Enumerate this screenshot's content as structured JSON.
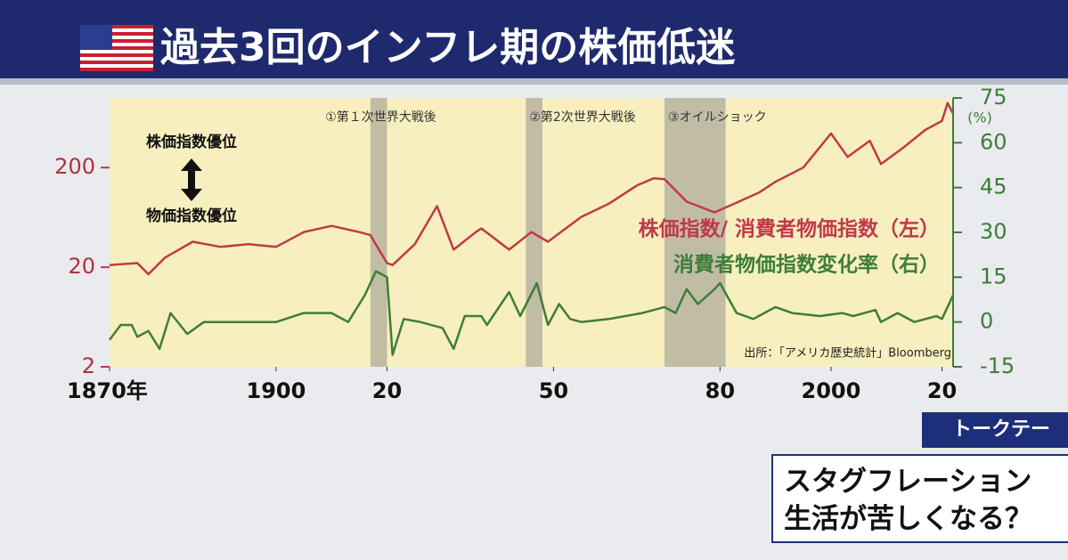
{
  "chart_data": {
    "type": "line",
    "title": "過去3回のインフレ期の株価低迷",
    "xlim": [
      1870,
      2022
    ],
    "xticks": [
      {
        "value": 1870,
        "label": "1870年"
      },
      1900,
      {
        "value": 1920,
        "label": "20"
      },
      {
        "value": 1950,
        "label": "50"
      },
      {
        "value": 1980,
        "label": "80"
      },
      2000,
      {
        "value": 2020,
        "label": "20"
      }
    ],
    "ylim": [
      2,
      1000
    ],
    "yscale": "log",
    "yticks": [
      2,
      20,
      200
    ],
    "y2lim": [
      -15,
      75
    ],
    "y2ticks": [
      -15,
      0,
      15,
      30,
      45,
      60,
      75
    ],
    "y2unit": "(%)",
    "series": [
      {
        "name": "株価指数/ 消費者物価指数（左）",
        "color": "#c0394a",
        "x": [
          1870,
          1875,
          1877,
          1880,
          1885,
          1890,
          1895,
          1900,
          1905,
          1910,
          1915,
          1917,
          1920,
          1921,
          1925,
          1929,
          1932,
          1936,
          1937,
          1942,
          1946,
          1949,
          1955,
          1960,
          1965,
          1968,
          1970,
          1974,
          1979,
          1982,
          1987,
          1990,
          1995,
          2000,
          2003,
          2007,
          2009,
          2013,
          2017,
          2020,
          2021,
          2022
        ],
        "values": [
          21,
          22,
          17,
          25,
          36,
          32,
          34,
          32,
          45,
          52,
          45,
          42,
          22,
          21,
          34,
          82,
          30,
          45,
          49,
          30,
          45,
          36,
          64,
          87,
          132,
          156,
          153,
          91,
          71,
          84,
          112,
          144,
          200,
          440,
          256,
          372,
          217,
          316,
          478,
          588,
          890,
          695
        ]
      },
      {
        "name": "消費者物価指数変化率（右）",
        "color": "#3f7d3a",
        "axis": "y2",
        "x": [
          1870,
          1872,
          1874,
          1875,
          1877,
          1879,
          1881,
          1884,
          1887,
          1900,
          1905,
          1910,
          1913,
          1916,
          1918,
          1920,
          1921,
          1923,
          1926,
          1930,
          1932,
          1934,
          1937,
          1938,
          1942,
          1944,
          1947,
          1949,
          1951,
          1953,
          1955,
          1960,
          1966,
          1970,
          1972,
          1974,
          1976,
          1979,
          1980,
          1983,
          1986,
          1990,
          1993,
          1998,
          2002,
          2004,
          2008,
          2009,
          2012,
          2015,
          2019,
          2020,
          2022
        ],
        "values": [
          -6,
          -1,
          -1,
          -5,
          -3,
          -9,
          3,
          -4,
          0,
          0,
          3,
          3,
          0,
          9,
          17,
          15,
          -11,
          1,
          0,
          -2,
          -9,
          2,
          2,
          -1,
          10,
          2,
          13,
          -1,
          6,
          1,
          0,
          1,
          3,
          5,
          3,
          11,
          6,
          11,
          13,
          3,
          1,
          5,
          3,
          2,
          3,
          2,
          4,
          0,
          3,
          0,
          2,
          1,
          9
        ]
      }
    ],
    "periods": [
      {
        "label": "①第１次世界大戦後",
        "start": 1917,
        "end": 1920
      },
      {
        "label": "②第2次世界大戦後",
        "start": 1945,
        "end": 1948
      },
      {
        "label": "③オイルショック",
        "start": 1970,
        "end": 1981
      }
    ],
    "annotations": [
      "株価指数優位",
      "物価指数優位"
    ],
    "source": "出所：「アメリカ歴史統計」Bloomberg"
  },
  "caption": {
    "tag": "トークテー",
    "lines": [
      "スタグフレーション",
      "生活が苦しくなる？"
    ]
  }
}
